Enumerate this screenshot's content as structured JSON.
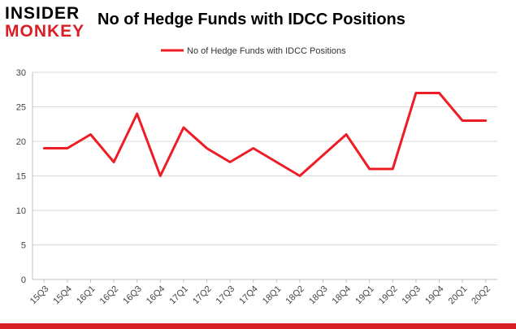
{
  "brand": {
    "logo_top": "INSIDER",
    "logo_bottom": "MONKEY",
    "logo_red": "#d71f26"
  },
  "chart_data": {
    "type": "line",
    "title": "No of Hedge Funds with IDCC Positions",
    "xlabel": "",
    "ylabel": "",
    "categories": [
      "15Q3",
      "15Q4",
      "16Q1",
      "16Q2",
      "16Q3",
      "16Q4",
      "17Q1",
      "17Q2",
      "17Q3",
      "17Q4",
      "18Q1",
      "18Q2",
      "18Q3",
      "18Q4",
      "19Q1",
      "19Q2",
      "19Q3",
      "19Q4",
      "20Q1",
      "20Q2"
    ],
    "series": [
      {
        "name": "No of Hedge Funds with IDCC Positions",
        "color": "#ee1c25",
        "values": [
          19,
          19,
          21,
          17,
          24,
          15,
          22,
          19,
          17,
          19,
          17,
          15,
          18,
          21,
          16,
          16,
          27,
          27,
          23,
          23
        ]
      }
    ],
    "ylim": [
      0,
      30
    ],
    "yticks": [
      0,
      5,
      10,
      15,
      20,
      25,
      30
    ],
    "grid": true,
    "legend_position": "top-center"
  }
}
